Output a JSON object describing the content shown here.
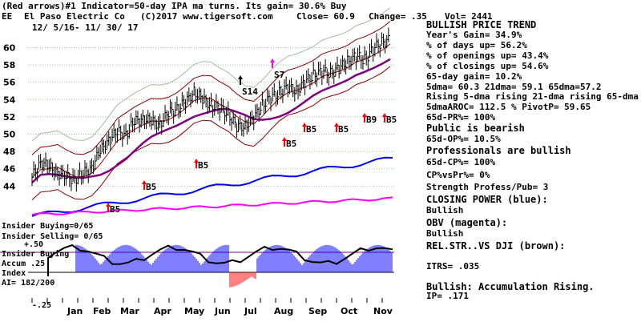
{
  "header": {
    "line1": "(Red arrows)#1 Indicator=50-day IPA ma turns. Its gain= 30.6% Buy",
    "symbol": "EE",
    "company": "El Paso Electric Co",
    "copyright": "(C)2017 www.tigersoft.com",
    "close": "Close= 60.9",
    "change": "Change= .35",
    "vol": "Vol= 2441",
    "date_range": "12/ 5/16- 11/ 30/ 17"
  },
  "right_panel": [
    {
      "text": "BULLISH PRICE TREND",
      "style": "h"
    },
    {
      "text": "  Year's Gain= 34.9%",
      "style": "n"
    },
    {
      "text": "  % of days up= 56.2%",
      "style": "n"
    },
    {
      "text": "  % of openings up= 43.4%",
      "style": "n"
    },
    {
      "text": "  % of closings up= 54.6%",
      "style": "n"
    },
    {
      "text": "  65-day gain= 10.2%",
      "style": "n"
    },
    {
      "text": "5dma= 60.3 21dma= 59.1 65dma=57.2",
      "style": "n"
    },
    {
      "text": "Rising 5-dma rising 21-dma rising 65-dma",
      "style": "n"
    },
    {
      "text": "5dmaAROC= 112.5 %  PivotP= 59.65",
      "style": "n"
    },
    {
      "text": "   65d-PR%= 100%",
      "style": "n"
    },
    {
      "text": "Public is bearish",
      "style": "h"
    },
    {
      "text": "   65d-OP%= 10.5%",
      "style": "n"
    },
    {
      "text": "Professionals are bullish",
      "style": "h"
    },
    {
      "text": "   65d-CP%= 100%",
      "style": "n"
    },
    {
      "text": "CP%vsPr%=  0%",
      "style": "n"
    },
    {
      "text": "Strength Profess/Pub= 3",
      "style": "n"
    },
    {
      "text": "CLOSING POWER (blue):",
      "style": "h"
    },
    {
      "text": "Bullish",
      "style": "n"
    },
    {
      "text": "OBV (magenta):",
      "style": "h"
    },
    {
      "text": "Bullish",
      "style": "n"
    },
    {
      "text": "REL.STR..VS DJI (brown):",
      "style": "h"
    },
    {
      "text": "ITRS= .035",
      "style": "n"
    },
    {
      "text": "Bullish: Accumulation Rising.",
      "style": "h"
    },
    {
      "text": "     IP=  .171",
      "style": "n"
    }
  ],
  "lower_labels": {
    "insider_buying": "Insider Buying=0/65",
    "insider_selling": "Insider Selling= 0/65",
    "plus50": "+.50",
    "insider_buying2": "Insider Buying",
    "accum": "Accum .25",
    "index": "Index",
    "ai": "AI= 182/200",
    "minus25": "-.25"
  },
  "chart_data": {
    "type": "line",
    "title": "EE El Paso Electric Co",
    "x": [
      "Jan",
      "Feb",
      "Mar",
      "Apr",
      "May",
      "Jun",
      "Jul",
      "Aug",
      "Sep",
      "Oct",
      "Nov"
    ],
    "ylim": [
      42,
      62
    ],
    "yticks": [
      44,
      46,
      48,
      50,
      52,
      54,
      56,
      58,
      60
    ],
    "grid": true,
    "price_trend": [
      45.0,
      46.8,
      46.2,
      45.6,
      45.0,
      44.8,
      45.4,
      46.2,
      48.0,
      49.4,
      50.2,
      50.0,
      51.4,
      51.8,
      51.4,
      51.2,
      52.4,
      53.0,
      53.6,
      55.0,
      54.0,
      53.4,
      53.0,
      52.4,
      50.8,
      51.0,
      51.8,
      53.4,
      54.2,
      54.8,
      55.4,
      55.0,
      56.0,
      56.8,
      57.2,
      57.0,
      57.6,
      58.4,
      59.0,
      58.6,
      59.8,
      60.6,
      60.9
    ],
    "signals": [
      {
        "label": "B5",
        "direction": "buy"
      },
      {
        "label": "B5",
        "direction": "buy"
      },
      {
        "label": "B5",
        "direction": "buy"
      },
      {
        "label": "B5",
        "direction": "buy"
      },
      {
        "label": "B5",
        "direction": "buy"
      },
      {
        "label": "B5",
        "direction": "buy"
      },
      {
        "label": "B9",
        "direction": "buy"
      },
      {
        "label": "B5",
        "direction": "buy"
      },
      {
        "label": "S14",
        "direction": "sell"
      },
      {
        "label": "S7",
        "direction": "sell"
      }
    ],
    "series": [
      {
        "name": "CLOSING POWER (blue)",
        "color": "#0000ff"
      },
      {
        "name": "OBV (magenta)",
        "color": "#ff00ff"
      },
      {
        "name": "REL.STR..VS DJI (brown)",
        "color": "#a52a2a"
      },
      {
        "name": "Accum Index",
        "color": "#0000ff"
      }
    ]
  }
}
